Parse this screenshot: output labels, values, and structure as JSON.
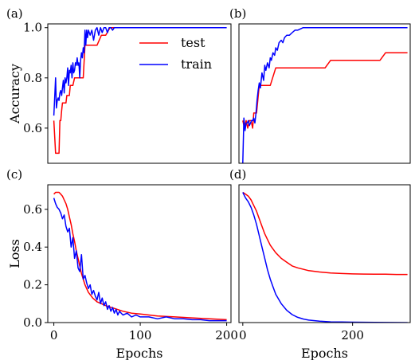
{
  "chart_data": [
    {
      "type": "line",
      "panel_label": "(a)",
      "xlim": [
        -7,
        205
      ],
      "ylim": [
        0.46,
        1.015
      ],
      "x_ticks": [],
      "y_ticks": [
        0.6,
        0.8,
        1.0
      ],
      "y_tick_labels": [
        "0.6",
        "0.8",
        "1.0"
      ],
      "ylabel": "Accuracy",
      "xlabel": "",
      "legend": {
        "placement": "upper-right",
        "entries": [
          "test",
          "train"
        ]
      },
      "series": [
        {
          "name": "test",
          "color": "#ff0000",
          "x": [
            0,
            2,
            3,
            4,
            5,
            6,
            7,
            8,
            9,
            10,
            11,
            12,
            13,
            14,
            15,
            16,
            17,
            18,
            19,
            20,
            22,
            24,
            26,
            28,
            30,
            32,
            34,
            36,
            38,
            40,
            42,
            44,
            46,
            48,
            50,
            55,
            60,
            65,
            70,
            75,
            80,
            85,
            90,
            95,
            100
          ],
          "y": [
            0.63,
            0.5,
            0.5,
            0.5,
            0.5,
            0.5,
            0.63,
            0.63,
            0.67,
            0.7,
            0.7,
            0.7,
            0.7,
            0.7,
            0.73,
            0.73,
            0.73,
            0.73,
            0.77,
            0.77,
            0.77,
            0.8,
            0.8,
            0.8,
            0.8,
            0.8,
            0.8,
            0.93,
            0.93,
            0.93,
            0.93,
            0.93,
            0.93,
            0.93,
            0.93,
            0.97,
            0.97,
            1.0,
            1.0,
            1.0,
            1.0,
            1.0,
            1.0,
            1.0,
            1.0
          ]
        },
        {
          "name": "train",
          "color": "#0000ff",
          "x": [
            0,
            2,
            3,
            4,
            5,
            6,
            7,
            8,
            9,
            10,
            11,
            12,
            13,
            14,
            15,
            16,
            17,
            18,
            19,
            20,
            21,
            22,
            23,
            24,
            25,
            26,
            27,
            28,
            29,
            30,
            31,
            32,
            33,
            34,
            35,
            36,
            37,
            38,
            39,
            40,
            42,
            44,
            46,
            48,
            50,
            52,
            54,
            56,
            58,
            60,
            62,
            64,
            66,
            68,
            70,
            72,
            74,
            76,
            78,
            80,
            82,
            84,
            86,
            88,
            90,
            100,
            120,
            140,
            160,
            180,
            200
          ],
          "y": [
            0.65,
            0.8,
            0.68,
            0.71,
            0.72,
            0.71,
            0.74,
            0.75,
            0.73,
            0.76,
            0.79,
            0.74,
            0.8,
            0.78,
            0.8,
            0.84,
            0.77,
            0.83,
            0.82,
            0.85,
            0.8,
            0.86,
            0.82,
            0.83,
            0.86,
            0.85,
            0.88,
            0.85,
            0.86,
            0.8,
            0.87,
            0.9,
            0.88,
            0.92,
            0.9,
            0.99,
            0.93,
            0.99,
            0.96,
            0.99,
            0.97,
            0.99,
            0.95,
            0.99,
            1.0,
            0.97,
            1.0,
            0.98,
            1.0,
            1.0,
            0.98,
            1.0,
            1.0,
            0.99,
            1.0,
            1.0,
            1.0,
            1.0,
            1.0,
            1.0,
            1.0,
            1.0,
            1.0,
            1.0,
            1.0,
            1.0,
            1.0,
            1.0,
            1.0,
            1.0,
            1.0
          ]
        }
      ]
    },
    {
      "type": "line",
      "panel_label": "(b)",
      "xlim": [
        -7,
        305
      ],
      "ylim": [
        0.46,
        1.015
      ],
      "x_ticks": [],
      "y_ticks": [],
      "ylabel": "",
      "xlabel": "",
      "series": [
        {
          "name": "test",
          "color": "#ff0000",
          "x": [
            0,
            3,
            6,
            9,
            12,
            15,
            18,
            20,
            22,
            25,
            30,
            35,
            40,
            45,
            50,
            60,
            70,
            80,
            90,
            100,
            110,
            120,
            130,
            140,
            150,
            160,
            170,
            180,
            190,
            200,
            210,
            220,
            230,
            240,
            250,
            260,
            270,
            280,
            290,
            300
          ],
          "y": [
            0.63,
            0.6,
            0.63,
            0.6,
            0.63,
            0.63,
            0.6,
            0.66,
            0.66,
            0.66,
            0.77,
            0.77,
            0.77,
            0.77,
            0.77,
            0.84,
            0.84,
            0.84,
            0.84,
            0.84,
            0.84,
            0.84,
            0.84,
            0.84,
            0.84,
            0.87,
            0.87,
            0.87,
            0.87,
            0.87,
            0.87,
            0.87,
            0.87,
            0.87,
            0.87,
            0.9,
            0.9,
            0.9,
            0.9,
            0.9
          ]
        },
        {
          "name": "train",
          "color": "#0000ff",
          "x": [
            0,
            2,
            4,
            6,
            8,
            10,
            12,
            14,
            16,
            18,
            20,
            22,
            24,
            26,
            28,
            30,
            32,
            35,
            38,
            40,
            42,
            45,
            48,
            50,
            52,
            55,
            58,
            60,
            63,
            66,
            70,
            73,
            76,
            80,
            85,
            90,
            95,
            100,
            110,
            120,
            140,
            160,
            180,
            200,
            220,
            240,
            260,
            280,
            300
          ],
          "y": [
            0.46,
            0.64,
            0.59,
            0.62,
            0.62,
            0.63,
            0.61,
            0.62,
            0.63,
            0.63,
            0.64,
            0.62,
            0.66,
            0.71,
            0.75,
            0.78,
            0.76,
            0.82,
            0.79,
            0.85,
            0.83,
            0.86,
            0.84,
            0.88,
            0.87,
            0.9,
            0.89,
            0.92,
            0.91,
            0.94,
            0.95,
            0.94,
            0.96,
            0.97,
            0.97,
            0.98,
            0.99,
            0.99,
            1.0,
            1.0,
            1.0,
            1.0,
            1.0,
            1.0,
            1.0,
            1.0,
            1.0,
            1.0,
            1.0
          ]
        }
      ]
    },
    {
      "type": "line",
      "panel_label": "(c)",
      "xlim": [
        -7,
        205
      ],
      "ylim": [
        0.0,
        0.73
      ],
      "x_ticks": [
        0,
        100,
        200
      ],
      "x_tick_labels": [
        "0",
        "100",
        "200"
      ],
      "y_ticks": [
        0.0,
        0.2,
        0.4,
        0.6
      ],
      "y_tick_labels": [
        "0.0",
        "0.2",
        "0.4",
        "0.6"
      ],
      "ylabel": "Loss",
      "xlabel": "Epochs",
      "series": [
        {
          "name": "test",
          "color": "#ff0000",
          "x": [
            0,
            2,
            4,
            6,
            8,
            10,
            12,
            14,
            16,
            18,
            20,
            22,
            24,
            26,
            28,
            30,
            32,
            34,
            36,
            38,
            40,
            45,
            50,
            55,
            60,
            70,
            80,
            90,
            100,
            120,
            140,
            160,
            180,
            200
          ],
          "y": [
            0.68,
            0.69,
            0.69,
            0.69,
            0.68,
            0.67,
            0.65,
            0.63,
            0.6,
            0.56,
            0.52,
            0.47,
            0.43,
            0.38,
            0.34,
            0.3,
            0.26,
            0.23,
            0.2,
            0.18,
            0.16,
            0.13,
            0.11,
            0.1,
            0.09,
            0.075,
            0.06,
            0.05,
            0.045,
            0.035,
            0.03,
            0.025,
            0.02,
            0.015
          ]
        },
        {
          "name": "train",
          "color": "#0000ff",
          "x": [
            0,
            2,
            4,
            6,
            8,
            10,
            12,
            14,
            16,
            18,
            20,
            22,
            24,
            26,
            28,
            30,
            32,
            34,
            36,
            38,
            40,
            42,
            44,
            46,
            48,
            50,
            52,
            54,
            56,
            58,
            60,
            62,
            64,
            66,
            68,
            70,
            72,
            74,
            76,
            78,
            80,
            85,
            90,
            95,
            100,
            110,
            120,
            130,
            140,
            150,
            160,
            170,
            180,
            190,
            200
          ],
          "y": [
            0.66,
            0.63,
            0.61,
            0.6,
            0.58,
            0.55,
            0.57,
            0.51,
            0.48,
            0.5,
            0.4,
            0.45,
            0.34,
            0.38,
            0.29,
            0.27,
            0.36,
            0.23,
            0.25,
            0.21,
            0.18,
            0.2,
            0.15,
            0.17,
            0.14,
            0.12,
            0.16,
            0.1,
            0.13,
            0.09,
            0.11,
            0.07,
            0.09,
            0.06,
            0.08,
            0.05,
            0.07,
            0.04,
            0.06,
            0.05,
            0.04,
            0.05,
            0.03,
            0.04,
            0.03,
            0.03,
            0.02,
            0.03,
            0.02,
            0.02,
            0.015,
            0.015,
            0.01,
            0.01,
            0.01
          ]
        }
      ]
    },
    {
      "type": "line",
      "panel_label": "(d)",
      "xlim": [
        -7,
        305
      ],
      "ylim": [
        0.0,
        0.73
      ],
      "x_ticks": [
        0,
        200
      ],
      "x_tick_labels": [
        "0",
        "200"
      ],
      "y_ticks": [],
      "ylabel": "",
      "xlabel": "Epochs",
      "series": [
        {
          "name": "test",
          "color": "#ff0000",
          "x": [
            0,
            5,
            10,
            15,
            20,
            25,
            30,
            35,
            40,
            45,
            50,
            55,
            60,
            70,
            80,
            90,
            100,
            120,
            140,
            160,
            180,
            200,
            220,
            240,
            260,
            280,
            300
          ],
          "y": [
            0.69,
            0.68,
            0.67,
            0.65,
            0.62,
            0.59,
            0.55,
            0.51,
            0.47,
            0.44,
            0.41,
            0.39,
            0.37,
            0.34,
            0.32,
            0.3,
            0.29,
            0.275,
            0.268,
            0.263,
            0.26,
            0.258,
            0.257,
            0.256,
            0.256,
            0.255,
            0.255
          ]
        },
        {
          "name": "train",
          "color": "#0000ff",
          "x": [
            0,
            5,
            10,
            15,
            20,
            25,
            30,
            35,
            40,
            45,
            50,
            55,
            60,
            70,
            80,
            90,
            100,
            110,
            120,
            140,
            160,
            180,
            200,
            240,
            300
          ],
          "y": [
            0.69,
            0.66,
            0.64,
            0.61,
            0.57,
            0.52,
            0.46,
            0.4,
            0.34,
            0.28,
            0.23,
            0.19,
            0.15,
            0.1,
            0.065,
            0.042,
            0.028,
            0.019,
            0.013,
            0.007,
            0.004,
            0.003,
            0.002,
            0.001,
            0.0
          ]
        }
      ]
    }
  ]
}
